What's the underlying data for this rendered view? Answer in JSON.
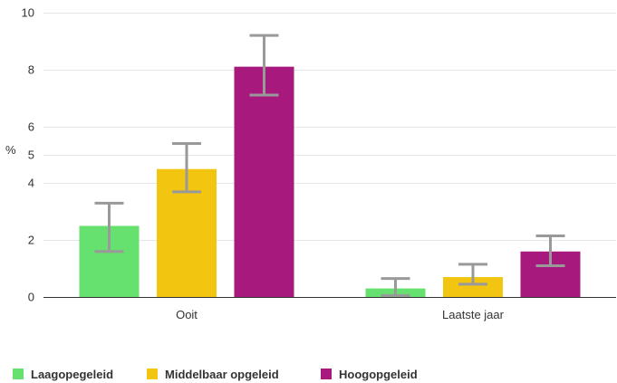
{
  "chart_data": {
    "type": "bar",
    "ylabel": "%",
    "ylim": [
      0,
      10
    ],
    "yticks": [
      0,
      2,
      4,
      5,
      6,
      8,
      10
    ],
    "categories": [
      "Ooit",
      "Laatste jaar"
    ],
    "series": [
      {
        "name": "Laagopegeleid",
        "color": "#66e06e",
        "values": [
          2.5,
          0.3
        ],
        "error_low": [
          1.6,
          0.05
        ],
        "error_high": [
          3.3,
          0.65
        ]
      },
      {
        "name": "Middelbaar opgeleid",
        "color": "#f2c511",
        "values": [
          4.5,
          0.7
        ],
        "error_low": [
          3.7,
          0.45
        ],
        "error_high": [
          5.4,
          1.15
        ]
      },
      {
        "name": "Hoogopgeleid",
        "color": "#a8197e",
        "values": [
          8.1,
          1.6
        ],
        "error_low": [
          7.1,
          1.1
        ],
        "error_high": [
          9.2,
          2.15
        ]
      }
    ],
    "error_bar_color": "#999999",
    "grid": true,
    "legend_position": "bottom-left"
  }
}
